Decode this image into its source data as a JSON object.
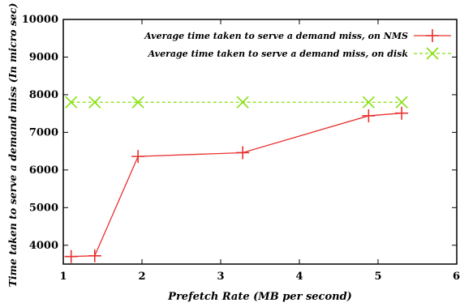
{
  "chart_data": {
    "type": "line",
    "title": "",
    "xlabel": "Prefetch Rate (MB per second)",
    "ylabel": "Time taken to serve a demand miss (In micro sec)",
    "xlim": [
      1,
      6
    ],
    "ylim": [
      3500,
      10000
    ],
    "x_ticks": [
      1,
      2,
      3,
      4,
      5,
      6
    ],
    "y_ticks": [
      4000,
      5000,
      6000,
      7000,
      8000,
      9000,
      10000
    ],
    "grid": false,
    "legend_position": "top-right",
    "series": [
      {
        "name": "Average time taken to serve a demand miss, on NMS",
        "color": "#e8312f",
        "marker": "plus",
        "line_style": "solid",
        "x": [
          1.1,
          1.4,
          1.95,
          3.28,
          4.88,
          5.3
        ],
        "y": [
          3700,
          3720,
          6360,
          6460,
          7440,
          7510
        ]
      },
      {
        "name": "Average time taken to serve a demand miss, on disk",
        "color": "#84e00e",
        "marker": "x",
        "line_style": "dashed",
        "x": [
          1.1,
          1.4,
          1.95,
          3.28,
          4.88,
          5.3
        ],
        "y": [
          7800,
          7800,
          7800,
          7800,
          7800,
          7800
        ]
      }
    ]
  }
}
